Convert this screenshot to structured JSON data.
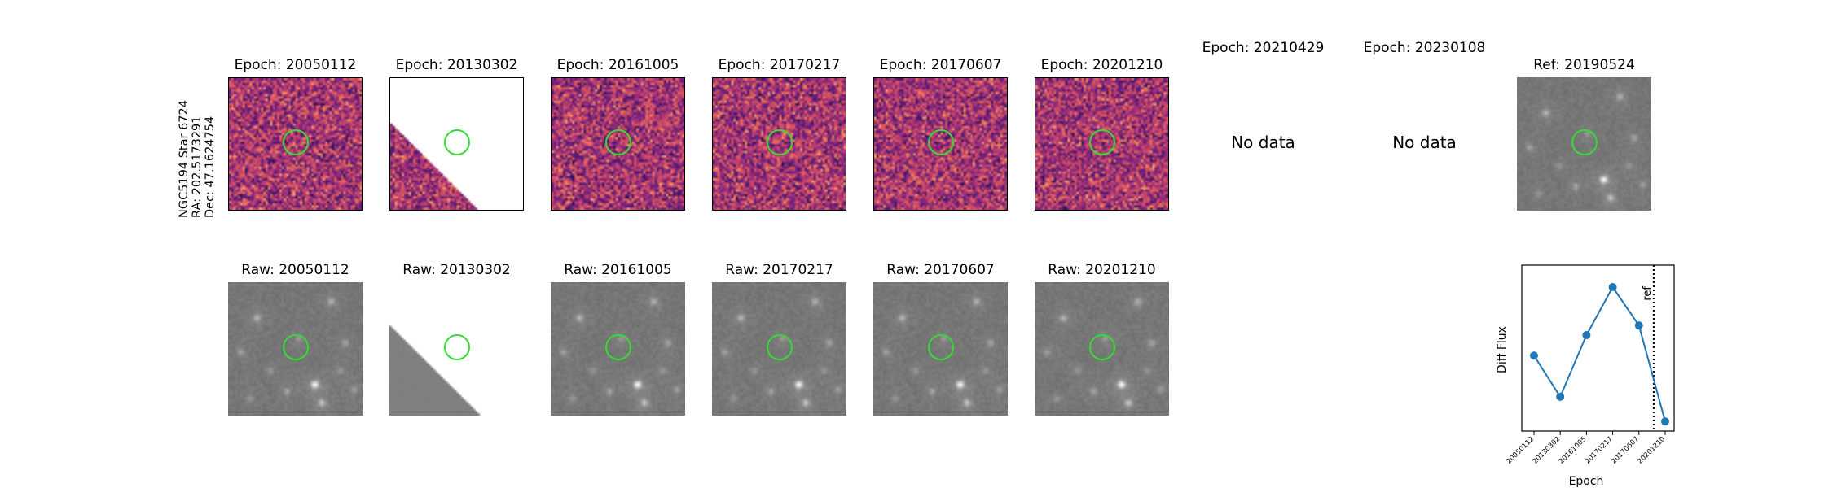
{
  "target_label": {
    "line1": "NGC5194 Star 6724",
    "line2": "RA: 202.5173291",
    "line3": "Dec: 47.1624754"
  },
  "diff_row": [
    {
      "title": "Epoch: 20050112",
      "has_data": true
    },
    {
      "title": "Epoch: 20130302",
      "has_data": true
    },
    {
      "title": "Epoch: 20161005",
      "has_data": true
    },
    {
      "title": "Epoch: 20170217",
      "has_data": true
    },
    {
      "title": "Epoch: 20170607",
      "has_data": true
    },
    {
      "title": "Epoch: 20201210",
      "has_data": true
    },
    {
      "title": "Epoch: 20210429",
      "has_data": false,
      "message": "No data"
    },
    {
      "title": "Epoch: 20230108",
      "has_data": false,
      "message": "No data"
    }
  ],
  "ref_panel": {
    "title": "Ref: 20190524"
  },
  "raw_row": [
    {
      "title": "Raw: 20050112"
    },
    {
      "title": "Raw: 20130302"
    },
    {
      "title": "Raw: 20161005"
    },
    {
      "title": "Raw: 20170217"
    },
    {
      "title": "Raw: 20170607"
    },
    {
      "title": "Raw: 20201210"
    }
  ],
  "colors": {
    "aperture": "#33dd33",
    "series": "#1f77b4"
  },
  "chart_data": {
    "type": "line",
    "title": "",
    "xlabel": "Epoch",
    "ylabel": "Diff Flux",
    "categories": [
      "20050112",
      "20130302",
      "20161005",
      "20170217",
      "20170607",
      "20201210"
    ],
    "values": [
      0.0,
      -0.3,
      0.15,
      0.5,
      0.22,
      -0.48
    ],
    "ylim": [
      -0.55,
      0.66
    ],
    "y_ticks_shown": false,
    "ref_line": {
      "label": "ref",
      "position_between": [
        4,
        5
      ],
      "style": "dotted"
    },
    "grid": false,
    "marker": "circle"
  }
}
